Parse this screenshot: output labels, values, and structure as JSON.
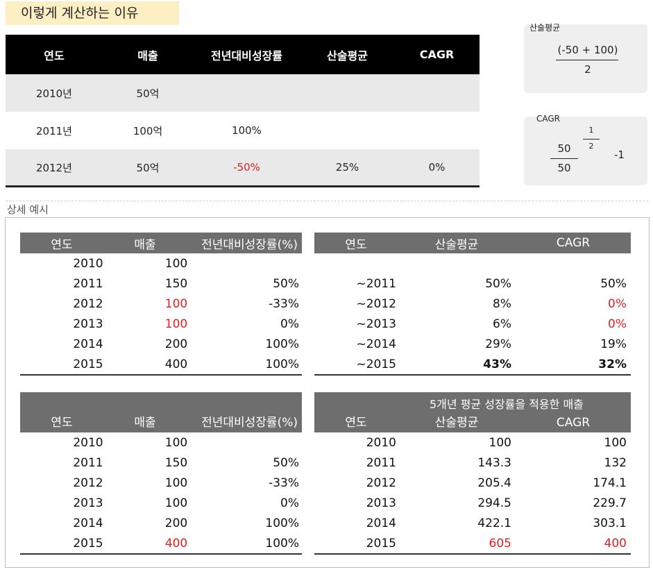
{
  "title": "이렇게 계산하는 이유",
  "top_table": {
    "headers": [
      "연도",
      "매출",
      "전년대비성장률",
      "산술평균",
      "CAGR"
    ],
    "rows": [
      [
        "2010년",
        "50억",
        "",
        "",
        ""
      ],
      [
        "2011년",
        "100억",
        "100%",
        "",
        ""
      ],
      [
        "2012년",
        "50억",
        "-50%",
        "25%",
        "0%"
      ]
    ]
  },
  "formula_arith": {
    "label": "산술평균",
    "numerator": "(-50 + 100)",
    "denominator": "2"
  },
  "formula_cagr": {
    "label": "CAGR",
    "numerator": "50",
    "denominator": "50",
    "exp_numerator": "1",
    "exp_denominator": "2",
    "suffix": "-1"
  },
  "section_label": "상세 예시",
  "table_a": {
    "headers": [
      "연도",
      "매출",
      "전년대비성장률(%)"
    ],
    "rows": [
      [
        "2010",
        "100",
        ""
      ],
      [
        "2011",
        "150",
        "50%"
      ],
      [
        "2012",
        "100",
        "-33%"
      ],
      [
        "2013",
        "100",
        "0%"
      ],
      [
        "2014",
        "200",
        "100%"
      ],
      [
        "2015",
        "400",
        "100%"
      ]
    ]
  },
  "table_b": {
    "headers": [
      "연도",
      "산술평균",
      "CAGR"
    ],
    "rows": [
      [
        "~2011",
        "50%",
        "50%"
      ],
      [
        "~2012",
        "8%",
        "0%"
      ],
      [
        "~2013",
        "6%",
        "0%"
      ],
      [
        "~2014",
        "29%",
        "19%"
      ],
      [
        "~2015",
        "43%",
        "32%"
      ]
    ]
  },
  "table_c": {
    "headers": [
      "연도",
      "매출",
      "전년대비성장률(%)"
    ],
    "rows": [
      [
        "2010",
        "100",
        ""
      ],
      [
        "2011",
        "150",
        "50%"
      ],
      [
        "2012",
        "100",
        "-33%"
      ],
      [
        "2013",
        "100",
        "0%"
      ],
      [
        "2014",
        "200",
        "100%"
      ],
      [
        "2015",
        "400",
        "100%"
      ]
    ]
  },
  "table_d": {
    "super_header": "5개년 평균 성장률을 적용한 매출",
    "headers": [
      "연도",
      "산술평균",
      "CAGR"
    ],
    "rows": [
      [
        "2010",
        "100",
        "100"
      ],
      [
        "2011",
        "143.3",
        "132"
      ],
      [
        "2012",
        "205.4",
        "174.1"
      ],
      [
        "2013",
        "294.5",
        "229.7"
      ],
      [
        "2014",
        "422.1",
        "303.1"
      ],
      [
        "2015",
        "605",
        "400"
      ]
    ]
  },
  "colors": {
    "highlight": "#fdefc4",
    "header_dark": "#000000",
    "header_gray": "#6e6e6e",
    "red": "#e02020",
    "row_shade": "#e9e9e9"
  }
}
